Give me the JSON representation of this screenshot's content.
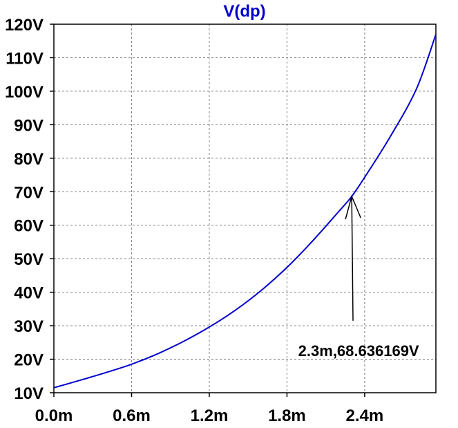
{
  "chart_data": {
    "type": "line",
    "title": "V(dp)",
    "xlabel": "",
    "ylabel": "",
    "xlim": [
      0,
      0.00295
    ],
    "ylim": [
      10,
      120
    ],
    "grid": true,
    "x_ticks": [
      {
        "value": 0.0,
        "label": "0.0m"
      },
      {
        "value": 0.0006,
        "label": "0.6m"
      },
      {
        "value": 0.0012,
        "label": "1.2m"
      },
      {
        "value": 0.0018,
        "label": "1.8m"
      },
      {
        "value": 0.0024,
        "label": "2.4m"
      }
    ],
    "y_ticks": [
      {
        "value": 10,
        "label": "10V"
      },
      {
        "value": 20,
        "label": "20V"
      },
      {
        "value": 30,
        "label": "30V"
      },
      {
        "value": 40,
        "label": "40V"
      },
      {
        "value": 50,
        "label": "50V"
      },
      {
        "value": 60,
        "label": "60V"
      },
      {
        "value": 70,
        "label": "70V"
      },
      {
        "value": 80,
        "label": "80V"
      },
      {
        "value": 90,
        "label": "90V"
      },
      {
        "value": 100,
        "label": "100V"
      },
      {
        "value": 110,
        "label": "110V"
      },
      {
        "value": 120,
        "label": "120V"
      }
    ],
    "series": [
      {
        "name": "V(dp)",
        "color": "#0000cc",
        "x": [
          0.0,
          0.0002,
          0.0004,
          0.0006,
          0.0008,
          0.001,
          0.0012,
          0.0014,
          0.0016,
          0.0018,
          0.002,
          0.0022,
          0.0023,
          0.0024,
          0.0026,
          0.0028,
          0.00295
        ],
        "y": [
          11.5,
          13.7,
          16.0,
          18.5,
          21.6,
          25.3,
          29.6,
          34.6,
          40.5,
          47.4,
          55.4,
          64.1,
          68.6,
          74.3,
          86.6,
          100.7,
          117.0
        ]
      }
    ],
    "annotation": {
      "text": "2.3m,68.636169V",
      "point": {
        "x": 0.0023,
        "y": 68.636169
      },
      "tail": {
        "x": 0.00231,
        "y": 31.5
      }
    }
  },
  "colors": {
    "title": "#0000cc",
    "axis": "#000000",
    "grid": "#808080"
  }
}
